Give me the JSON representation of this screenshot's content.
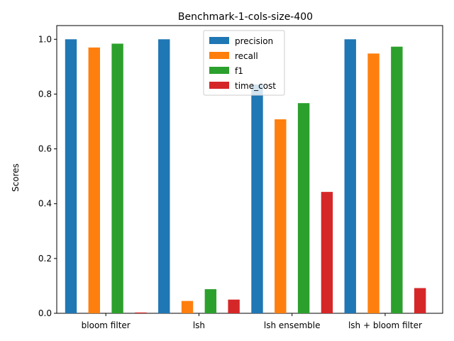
{
  "chart_data": {
    "type": "bar",
    "title": "Benchmark-1-cols-size-400",
    "xlabel": "",
    "ylabel": "Scores",
    "ylim": [
      0,
      1.05
    ],
    "yticks": [
      0.0,
      0.2,
      0.4,
      0.6,
      0.8,
      1.0
    ],
    "ytick_labels": [
      "0.0",
      "0.2",
      "0.4",
      "0.6",
      "0.8",
      "1.0"
    ],
    "categories": [
      "bloom filter",
      "lsh",
      "lsh ensemble",
      "lsh + bloom filter"
    ],
    "series": [
      {
        "name": "precision",
        "color": "#1f77b4",
        "values": [
          1.0,
          1.0,
          0.835,
          1.0
        ]
      },
      {
        "name": "recall",
        "color": "#ff7f0e",
        "values": [
          0.97,
          0.045,
          0.708,
          0.948
        ]
      },
      {
        "name": "f1",
        "color": "#2ca02c",
        "values": [
          0.984,
          0.088,
          0.767,
          0.973
        ]
      },
      {
        "name": "time_cost",
        "color": "#d62728",
        "values": [
          0.003,
          0.05,
          0.443,
          0.092
        ]
      }
    ],
    "legend": {
      "placement": "top-center"
    },
    "grid": false
  }
}
